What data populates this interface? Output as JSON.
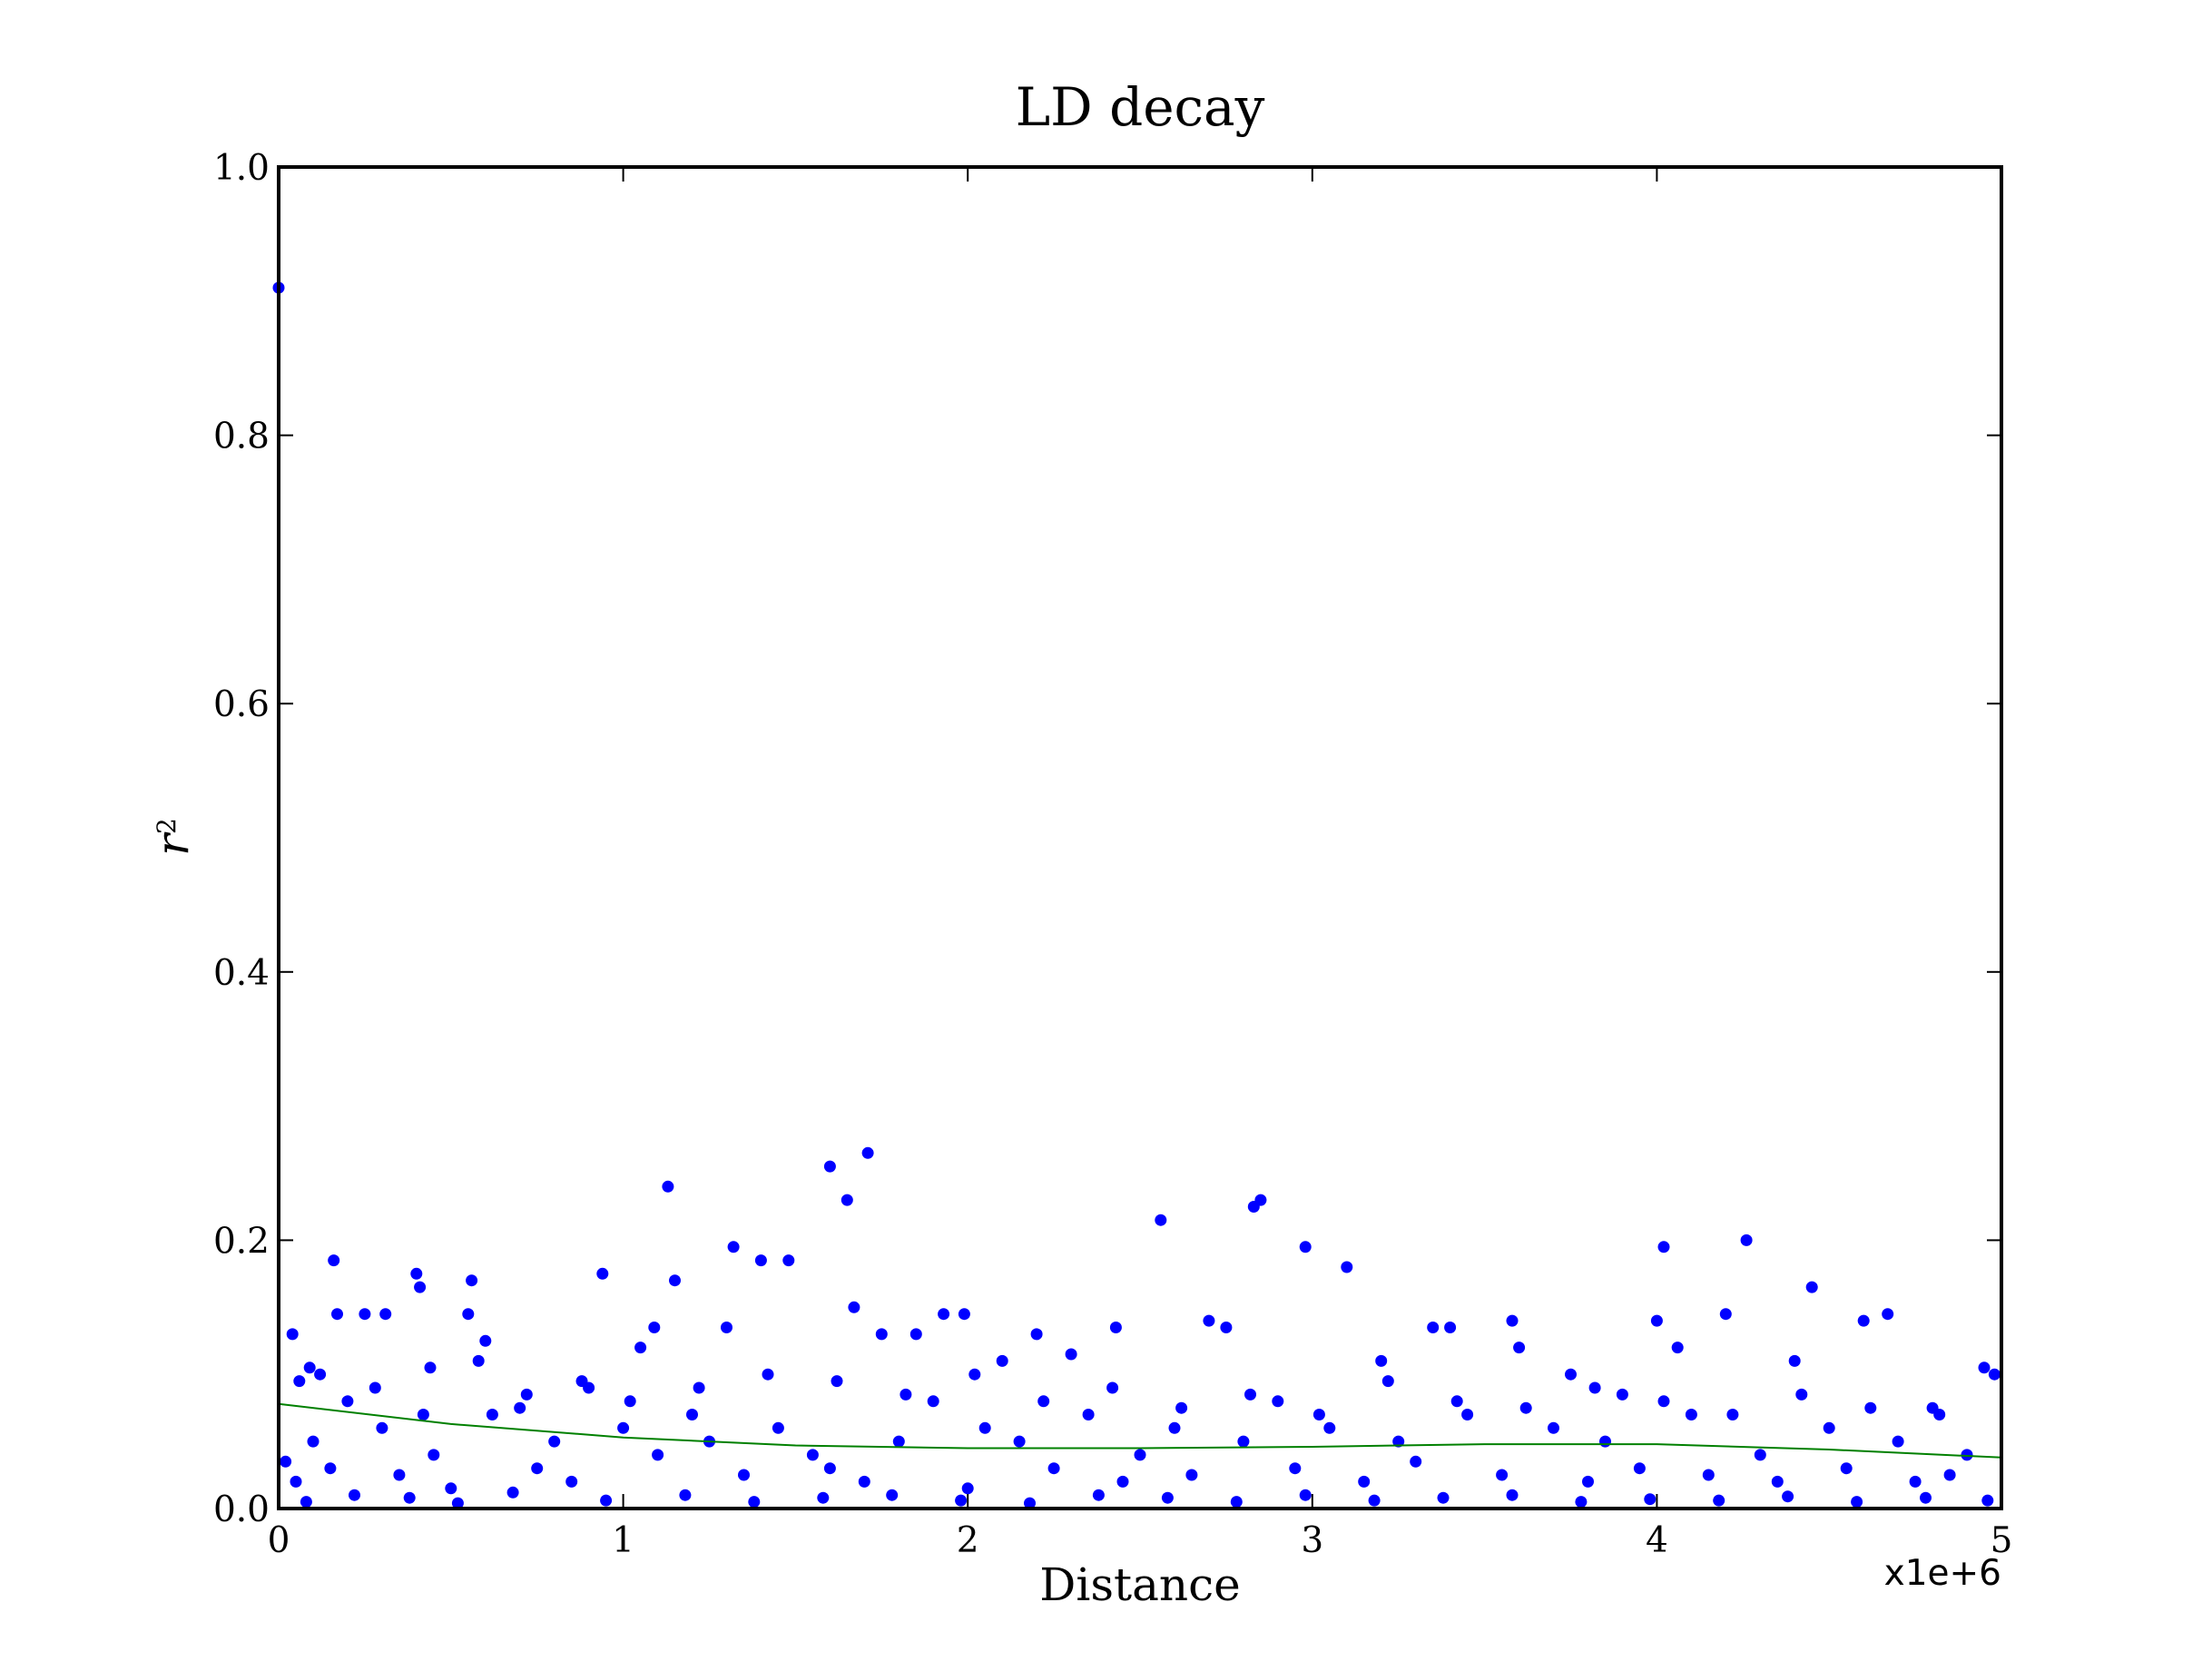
{
  "chart_data": {
    "type": "scatter",
    "title": "LD decay",
    "xlabel": "Distance",
    "ylabel": "r",
    "ylabel_superscript": "2",
    "x_offset_label": "x1e+6",
    "xlim": [
      0,
      5
    ],
    "ylim": [
      0,
      1.0
    ],
    "x_ticks": [
      "0",
      "1",
      "2",
      "3",
      "4",
      "5"
    ],
    "y_ticks": [
      "0.0",
      "0.2",
      "0.4",
      "0.6",
      "0.8",
      "1.0"
    ],
    "grid": false,
    "legend": "none",
    "colors": {
      "points": "#0000ff",
      "trend": "#008000",
      "axes": "#000000"
    },
    "series": [
      {
        "type": "scatter",
        "x": [
          0.0,
          0.04,
          0.06,
          0.09,
          0.16,
          0.17,
          0.25,
          0.31,
          0.4,
          0.41,
          0.44,
          0.55,
          0.56,
          0.6,
          0.7,
          0.94,
          1.05,
          1.09,
          1.13,
          1.15,
          1.3,
          1.32,
          1.4,
          1.48,
          1.6,
          1.65,
          1.67,
          1.71,
          1.75,
          1.85,
          1.93,
          1.99,
          2.1,
          2.2,
          2.3,
          2.43,
          2.56,
          2.7,
          2.75,
          2.83,
          2.85,
          2.98,
          3.1,
          3.2,
          3.35,
          3.4,
          3.58,
          3.6,
          3.75,
          3.9,
          4.0,
          4.02,
          4.06,
          4.2,
          4.26,
          4.4,
          4.45,
          4.6,
          4.67,
          4.8,
          4.95,
          4.98,
          0.02,
          0.1,
          0.2,
          0.3,
          0.45,
          0.62,
          0.8,
          0.9,
          1.0,
          1.2,
          1.25,
          1.45,
          1.55,
          1.8,
          1.9,
          2.05,
          2.15,
          2.35,
          2.5,
          2.6,
          2.8,
          2.9,
          3.05,
          3.25,
          3.45,
          3.7,
          3.85,
          4.1,
          4.3,
          4.5,
          4.7,
          4.9,
          0.05,
          0.15,
          0.35,
          0.5,
          0.75,
          0.85,
          1.1,
          1.35,
          1.6,
          1.7,
          2.0,
          2.25,
          2.45,
          2.65,
          2.95,
          3.15,
          3.3,
          3.55,
          3.8,
          3.95,
          4.15,
          4.35,
          4.55,
          4.75,
          4.85,
          0.08,
          0.22,
          0.38,
          0.52,
          0.68,
          0.95,
          1.18,
          1.38,
          1.58,
          1.78,
          1.98,
          2.18,
          2.38,
          2.58,
          2.78,
          2.98,
          3.18,
          3.38,
          3.58,
          3.78,
          3.98,
          4.18,
          4.38,
          4.58,
          4.78,
          4.96,
          0.12,
          0.28,
          0.42,
          0.58,
          0.72,
          0.88,
          1.02,
          1.22,
          1.42,
          1.62,
          1.82,
          2.02,
          2.22,
          2.42,
          2.62,
          2.82,
          3.02,
          3.22,
          3.42,
          3.62,
          3.82,
          4.02,
          4.22,
          4.42,
          4.62,
          4.82
        ],
        "y": [
          0.91,
          0.13,
          0.095,
          0.105,
          0.185,
          0.145,
          0.145,
          0.145,
          0.175,
          0.165,
          0.105,
          0.145,
          0.17,
          0.125,
          0.075,
          0.175,
          0.12,
          0.135,
          0.24,
          0.17,
          0.135,
          0.195,
          0.185,
          0.185,
          0.255,
          0.23,
          0.15,
          0.265,
          0.13,
          0.13,
          0.145,
          0.145,
          0.11,
          0.13,
          0.115,
          0.135,
          0.215,
          0.14,
          0.135,
          0.225,
          0.23,
          0.195,
          0.18,
          0.11,
          0.135,
          0.135,
          0.14,
          0.12,
          0.1,
          0.085,
          0.14,
          0.195,
          0.12,
          0.145,
          0.2,
          0.11,
          0.165,
          0.14,
          0.145,
          0.075,
          0.105,
          0.1,
          0.035,
          0.05,
          0.08,
          0.06,
          0.04,
          0.07,
          0.05,
          0.09,
          0.06,
          0.07,
          0.05,
          0.06,
          0.04,
          0.05,
          0.08,
          0.06,
          0.05,
          0.07,
          0.04,
          0.06,
          0.05,
          0.08,
          0.06,
          0.05,
          0.07,
          0.06,
          0.05,
          0.07,
          0.04,
          0.06,
          0.05,
          0.04,
          0.02,
          0.03,
          0.025,
          0.015,
          0.03,
          0.02,
          0.04,
          0.025,
          0.03,
          0.02,
          0.015,
          0.03,
          0.02,
          0.025,
          0.03,
          0.02,
          0.035,
          0.025,
          0.02,
          0.03,
          0.025,
          0.02,
          0.03,
          0.02,
          0.025,
          0.005,
          0.01,
          0.008,
          0.004,
          0.012,
          0.006,
          0.01,
          0.005,
          0.008,
          0.01,
          0.006,
          0.004,
          0.01,
          0.008,
          0.005,
          0.01,
          0.006,
          0.008,
          0.01,
          0.005,
          0.007,
          0.006,
          0.009,
          0.005,
          0.008,
          0.006,
          0.1,
          0.09,
          0.07,
          0.11,
          0.085,
          0.095,
          0.08,
          0.09,
          0.1,
          0.095,
          0.085,
          0.1,
          0.08,
          0.09,
          0.075,
          0.085,
          0.07,
          0.095,
          0.08,
          0.075,
          0.09,
          0.08,
          0.07,
          0.085,
          0.075,
          0.07
        ]
      },
      {
        "type": "line",
        "x": [
          0.0,
          0.5,
          1.0,
          1.5,
          2.0,
          2.5,
          3.0,
          3.5,
          4.0,
          4.5,
          5.0
        ],
        "y": [
          0.078,
          0.063,
          0.053,
          0.047,
          0.045,
          0.045,
          0.046,
          0.048,
          0.048,
          0.044,
          0.038
        ]
      }
    ]
  }
}
